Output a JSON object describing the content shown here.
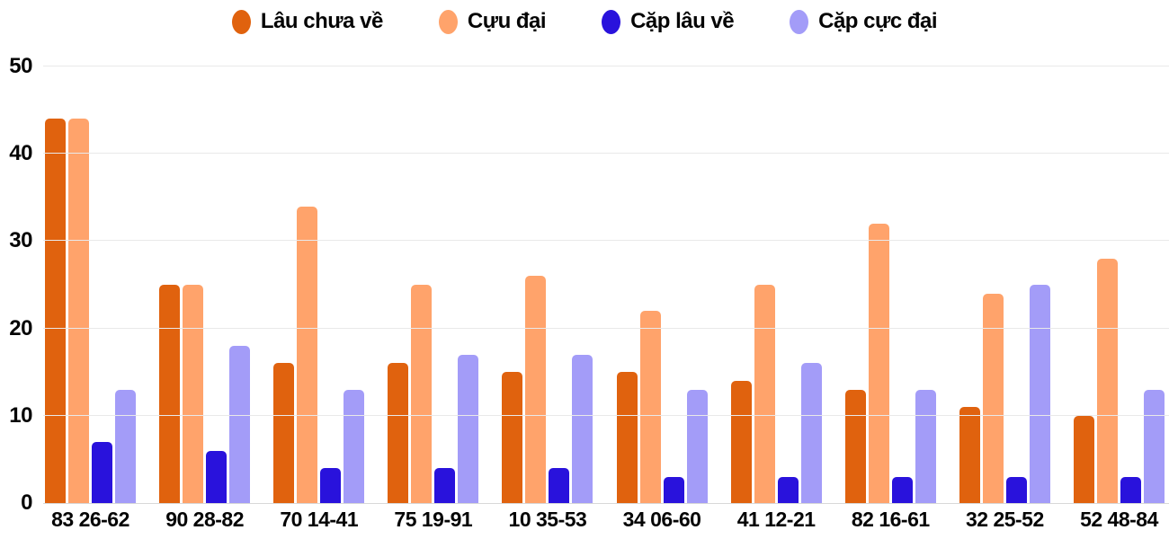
{
  "chart_data": {
    "type": "bar",
    "title": "",
    "xlabel": "",
    "ylabel": "",
    "ylim": [
      0,
      50
    ],
    "yticks": [
      0,
      10,
      20,
      30,
      40,
      50
    ],
    "grid": true,
    "legend_position": "top-center",
    "categories": [
      "83 26-62",
      "90 28-82",
      "70 14-41",
      "75 19-91",
      "10 35-53",
      "34 06-60",
      "41 12-21",
      "82 16-61",
      "32 25-52",
      "52 48-84"
    ],
    "series": [
      {
        "name": "Lâu chưa về",
        "color": "#e0620e",
        "values": [
          44,
          25,
          16,
          16,
          15,
          15,
          14,
          13,
          11,
          10
        ]
      },
      {
        "name": "Cựu đại",
        "color": "#ffa36b",
        "values": [
          44,
          25,
          34,
          25,
          26,
          22,
          25,
          32,
          24,
          28
        ]
      },
      {
        "name": "Cặp lâu về",
        "color": "#2912dc",
        "values": [
          7,
          6,
          4,
          4,
          4,
          3,
          3,
          3,
          3,
          3
        ]
      },
      {
        "name": "Cặp cực đại",
        "color": "#a39cf8",
        "values": [
          13,
          18,
          13,
          17,
          17,
          13,
          16,
          13,
          25,
          13
        ]
      }
    ],
    "colors": {
      "background": "#ffffff",
      "gridline": "#e9e9e9",
      "axis_text": "#050505"
    }
  }
}
